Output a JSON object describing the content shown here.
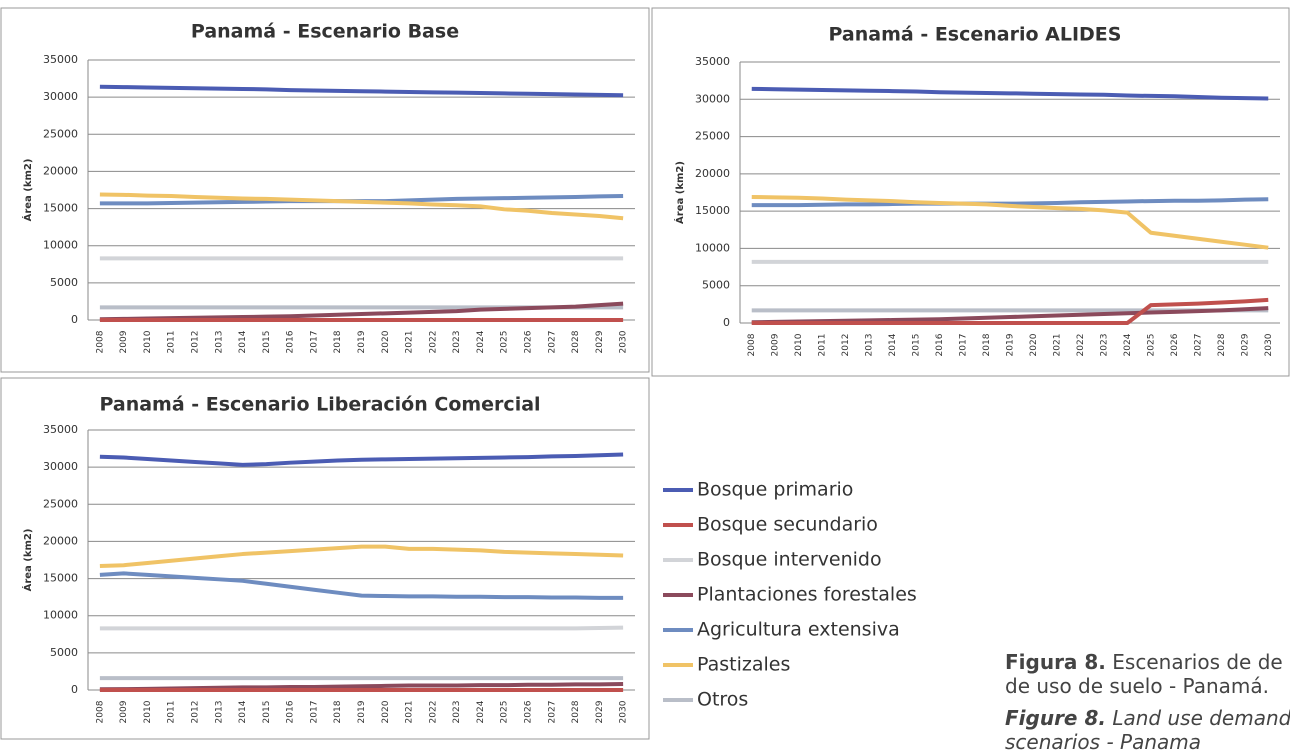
{
  "chart_data": [
    {
      "type": "line",
      "title": "Panamá - Escenario Base",
      "y_label": "Área (km2)",
      "categories": [
        "2008",
        "2009",
        "2010",
        "2011",
        "2012",
        "2013",
        "2014",
        "2015",
        "2016",
        "2017",
        "2018",
        "2019",
        "2020",
        "2021",
        "2022",
        "2023",
        "2024",
        "2025",
        "2026",
        "2027",
        "2028",
        "2029",
        "2030"
      ],
      "ylim": [
        0,
        35000
      ],
      "yticks": [
        0,
        5000,
        10000,
        15000,
        20000,
        25000,
        30000,
        35000
      ],
      "grid": true,
      "series": [
        {
          "values": [
            31400,
            31350,
            31300,
            31250,
            31200,
            31150,
            31100,
            31050,
            30950,
            30900,
            30850,
            30800,
            30750,
            30700,
            30650,
            30600,
            30550,
            30500,
            30450,
            30400,
            30350,
            30300,
            30250
          ]
        },
        {
          "values": [
            0,
            0,
            0,
            0,
            0,
            0,
            0,
            0,
            0,
            0,
            0,
            0,
            0,
            0,
            0,
            0,
            0,
            0,
            0,
            0,
            0,
            0,
            0
          ]
        },
        {
          "values": [
            8300,
            8300,
            8300,
            8300,
            8300,
            8300,
            8300,
            8300,
            8300,
            8300,
            8300,
            8300,
            8300,
            8300,
            8300,
            8300,
            8300,
            8300,
            8300,
            8300,
            8300,
            8300,
            8300
          ]
        },
        {
          "values": [
            100,
            150,
            200,
            250,
            300,
            350,
            400,
            450,
            500,
            600,
            700,
            800,
            900,
            1000,
            1100,
            1200,
            1400,
            1500,
            1600,
            1700,
            1800,
            2000,
            2200
          ]
        },
        {
          "values": [
            15700,
            15700,
            15700,
            15750,
            15800,
            15850,
            15900,
            15950,
            16000,
            16000,
            16000,
            16000,
            16000,
            16100,
            16200,
            16300,
            16350,
            16400,
            16450,
            16500,
            16550,
            16650,
            16700
          ]
        },
        {
          "values": [
            16900,
            16850,
            16750,
            16700,
            16550,
            16450,
            16350,
            16300,
            16200,
            16100,
            16000,
            15900,
            15800,
            15700,
            15550,
            15450,
            15300,
            14900,
            14700,
            14400,
            14200,
            14000,
            13700
          ]
        },
        {
          "values": [
            1700,
            1700,
            1700,
            1700,
            1700,
            1700,
            1700,
            1700,
            1700,
            1700,
            1700,
            1700,
            1700,
            1700,
            1700,
            1700,
            1700,
            1700,
            1700,
            1700,
            1700,
            1700,
            1700
          ]
        }
      ]
    },
    {
      "type": "line",
      "title": "Panamá - Escenario ALIDES",
      "y_label": "Área (km2)",
      "categories": [
        "2008",
        "2009",
        "2010",
        "2011",
        "2012",
        "2013",
        "2014",
        "2015",
        "2016",
        "2017",
        "2018",
        "2019",
        "2020",
        "2021",
        "2022",
        "2023",
        "2024",
        "2025",
        "2026",
        "2027",
        "2028",
        "2029",
        "2030"
      ],
      "ylim": [
        0,
        35000
      ],
      "yticks": [
        0,
        5000,
        10000,
        15000,
        20000,
        25000,
        30000,
        35000
      ],
      "grid": true,
      "series": [
        {
          "values": [
            31400,
            31350,
            31300,
            31250,
            31200,
            31150,
            31100,
            31050,
            30950,
            30900,
            30850,
            30800,
            30750,
            30700,
            30650,
            30600,
            30500,
            30450,
            30400,
            30300,
            30200,
            30150,
            30100
          ]
        },
        {
          "values": [
            0,
            0,
            0,
            0,
            0,
            0,
            0,
            0,
            0,
            0,
            0,
            0,
            0,
            0,
            0,
            0,
            0,
            2400,
            2500,
            2600,
            2750,
            2900,
            3100
          ]
        },
        {
          "values": [
            8200,
            8200,
            8200,
            8200,
            8200,
            8200,
            8200,
            8200,
            8200,
            8200,
            8200,
            8200,
            8200,
            8200,
            8200,
            8200,
            8200,
            8200,
            8200,
            8200,
            8200,
            8200,
            8200
          ]
        },
        {
          "values": [
            100,
            150,
            200,
            250,
            300,
            350,
            400,
            450,
            500,
            600,
            700,
            800,
            900,
            1000,
            1100,
            1200,
            1300,
            1400,
            1500,
            1600,
            1700,
            1850,
            2000
          ]
        },
        {
          "values": [
            15800,
            15800,
            15800,
            15850,
            15900,
            15900,
            15950,
            16000,
            16000,
            16000,
            16000,
            16000,
            16050,
            16100,
            16200,
            16250,
            16300,
            16350,
            16400,
            16400,
            16450,
            16550,
            16600
          ]
        },
        {
          "values": [
            16900,
            16850,
            16800,
            16700,
            16550,
            16450,
            16350,
            16200,
            16100,
            16000,
            15900,
            15700,
            15550,
            15400,
            15300,
            15100,
            14800,
            12100,
            11700,
            11300,
            10900,
            10500,
            10100
          ]
        },
        {
          "values": [
            1700,
            1700,
            1700,
            1700,
            1700,
            1700,
            1700,
            1700,
            1700,
            1700,
            1700,
            1700,
            1700,
            1700,
            1700,
            1700,
            1700,
            1700,
            1700,
            1700,
            1700,
            1700,
            1700
          ]
        }
      ]
    },
    {
      "type": "line",
      "title": "Panamá - Escenario Liberación Comercial",
      "y_label": "Área (km2)",
      "categories": [
        "2008",
        "2009",
        "2010",
        "2011",
        "2012",
        "2013",
        "2014",
        "2015",
        "2016",
        "2017",
        "2018",
        "2019",
        "2020",
        "2021",
        "2022",
        "2023",
        "2024",
        "2025",
        "2026",
        "2027",
        "2028",
        "2029",
        "2030"
      ],
      "ylim": [
        0,
        35000
      ],
      "yticks": [
        0,
        5000,
        10000,
        15000,
        20000,
        25000,
        30000,
        35000
      ],
      "grid": true,
      "series": [
        {
          "values": [
            31400,
            31300,
            31100,
            30900,
            30700,
            30500,
            30300,
            30400,
            30600,
            30750,
            30900,
            31000,
            31050,
            31100,
            31150,
            31200,
            31250,
            31300,
            31350,
            31450,
            31500,
            31600,
            31700
          ]
        },
        {
          "values": [
            0,
            0,
            0,
            0,
            0,
            0,
            0,
            0,
            0,
            0,
            0,
            0,
            0,
            0,
            0,
            0,
            0,
            0,
            0,
            0,
            0,
            0,
            0
          ]
        },
        {
          "values": [
            8300,
            8300,
            8300,
            8300,
            8300,
            8300,
            8300,
            8300,
            8300,
            8300,
            8300,
            8300,
            8300,
            8300,
            8300,
            8300,
            8300,
            8300,
            8300,
            8300,
            8300,
            8350,
            8400
          ]
        },
        {
          "values": [
            100,
            120,
            150,
            200,
            250,
            300,
            350,
            350,
            400,
            400,
            450,
            500,
            550,
            600,
            600,
            600,
            650,
            650,
            700,
            700,
            750,
            750,
            800
          ]
        },
        {
          "values": [
            15500,
            15700,
            15500,
            15300,
            15100,
            14900,
            14700,
            14300,
            13900,
            13500,
            13100,
            12700,
            12650,
            12600,
            12600,
            12550,
            12550,
            12500,
            12500,
            12450,
            12450,
            12400,
            12400
          ]
        },
        {
          "values": [
            16700,
            16800,
            17100,
            17400,
            17700,
            18000,
            18300,
            18500,
            18700,
            18900,
            19100,
            19300,
            19300,
            19000,
            19000,
            18900,
            18800,
            18600,
            18500,
            18400,
            18300,
            18200,
            18100
          ]
        },
        {
          "values": [
            1600,
            1600,
            1600,
            1600,
            1600,
            1600,
            1600,
            1600,
            1600,
            1600,
            1600,
            1600,
            1600,
            1600,
            1600,
            1600,
            1600,
            1600,
            1600,
            1600,
            1600,
            1600,
            1600
          ]
        }
      ]
    }
  ],
  "legend": [
    {
      "name": "Bosque primario",
      "color": "#4b5cb3"
    },
    {
      "name": "Bosque secundario",
      "color": "#c0504d"
    },
    {
      "name": "Bosque intervenido",
      "color": "#d2d4d8"
    },
    {
      "name": "Plantaciones forestales",
      "color": "#8b4a5c"
    },
    {
      "name": "Agricultura extensiva",
      "color": "#6e8cc0"
    },
    {
      "name": "Pastizales",
      "color": "#f0c366"
    },
    {
      "name": "Otros",
      "color": "#b9bec8"
    }
  ],
  "caption": {
    "es_label": "Figura 8.",
    "es_line1": "Escenarios de de",
    "es_line2": "de uso de suelo - Panamá.",
    "en_label": "Figure 8.",
    "en_line1": "Land use demand",
    "en_line2": "scenarios - Panama"
  }
}
